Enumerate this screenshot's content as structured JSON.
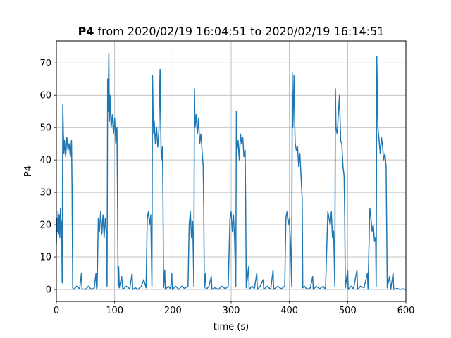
{
  "chart_data": {
    "type": "line",
    "title_bold": "P4",
    "title_rest": " from 2020/02/19 16:04:51 to 2020/02/19 16:14:51",
    "xlabel": "time (s)",
    "ylabel": "P4",
    "xlim": [
      0,
      600
    ],
    "ylim": [
      -3.7,
      76.8
    ],
    "xticks": [
      0,
      100,
      200,
      300,
      400,
      500,
      600
    ],
    "yticks": [
      0,
      10,
      20,
      30,
      40,
      50,
      60,
      70
    ],
    "grid": true,
    "line_color": "#1f77b4",
    "series": [
      {
        "points": [
          [
            0,
            14
          ],
          [
            1,
            22
          ],
          [
            2,
            18
          ],
          [
            3,
            24
          ],
          [
            4,
            17
          ],
          [
            5,
            23
          ],
          [
            6,
            16
          ],
          [
            7,
            25
          ],
          [
            8,
            20
          ],
          [
            9,
            21
          ],
          [
            10,
            2
          ],
          [
            11,
            57
          ],
          [
            12,
            48
          ],
          [
            13,
            42
          ],
          [
            14,
            46
          ],
          [
            16,
            41
          ],
          [
            18,
            47
          ],
          [
            20,
            43
          ],
          [
            22,
            45
          ],
          [
            24,
            41
          ],
          [
            26,
            46
          ],
          [
            27,
            30
          ],
          [
            28,
            0.5
          ],
          [
            30,
            0
          ],
          [
            35,
            1
          ],
          [
            40,
            0.2
          ],
          [
            43,
            5
          ],
          [
            44,
            0.2
          ],
          [
            50,
            0
          ],
          [
            55,
            1
          ],
          [
            60,
            0
          ],
          [
            65,
            0.5
          ],
          [
            68,
            5
          ],
          [
            69,
            0
          ],
          [
            70,
            1
          ],
          [
            72,
            22
          ],
          [
            74,
            18
          ],
          [
            76,
            24
          ],
          [
            78,
            17
          ],
          [
            80,
            23
          ],
          [
            82,
            16
          ],
          [
            84,
            22
          ],
          [
            86,
            17
          ],
          [
            87,
            1
          ],
          [
            88,
            65
          ],
          [
            89,
            55
          ],
          [
            90,
            73
          ],
          [
            91,
            52
          ],
          [
            92,
            60
          ],
          [
            94,
            50
          ],
          [
            96,
            54
          ],
          [
            98,
            48
          ],
          [
            100,
            53
          ],
          [
            102,
            45
          ],
          [
            104,
            50
          ],
          [
            105,
            28
          ],
          [
            106,
            1
          ],
          [
            107,
            7
          ],
          [
            108,
            0.5
          ],
          [
            112,
            4
          ],
          [
            114,
            0
          ],
          [
            120,
            1
          ],
          [
            126,
            0.2
          ],
          [
            130,
            5
          ],
          [
            131,
            0
          ],
          [
            136,
            0.5
          ],
          [
            140,
            0
          ],
          [
            146,
            1
          ],
          [
            150,
            3
          ],
          [
            154,
            0.5
          ],
          [
            156,
            22
          ],
          [
            158,
            24
          ],
          [
            160,
            20
          ],
          [
            162,
            23
          ],
          [
            163,
            12
          ],
          [
            164,
            1
          ],
          [
            165,
            66
          ],
          [
            166,
            55
          ],
          [
            167,
            48
          ],
          [
            168,
            52
          ],
          [
            170,
            45
          ],
          [
            172,
            50
          ],
          [
            174,
            44
          ],
          [
            176,
            49
          ],
          [
            178,
            68
          ],
          [
            179,
            52
          ],
          [
            180,
            40
          ],
          [
            182,
            44
          ],
          [
            183,
            29
          ],
          [
            184,
            0.5
          ],
          [
            186,
            6
          ],
          [
            187,
            0
          ],
          [
            192,
            1
          ],
          [
            196,
            0.2
          ],
          [
            198,
            5
          ],
          [
            199,
            0
          ],
          [
            205,
            1
          ],
          [
            210,
            0
          ],
          [
            215,
            1
          ],
          [
            220,
            0.3
          ],
          [
            226,
            1
          ],
          [
            228,
            20
          ],
          [
            230,
            24
          ],
          [
            232,
            16
          ],
          [
            234,
            21
          ],
          [
            236,
            1
          ],
          [
            237,
            62
          ],
          [
            238,
            50
          ],
          [
            240,
            54
          ],
          [
            242,
            48
          ],
          [
            244,
            53
          ],
          [
            246,
            45
          ],
          [
            248,
            48
          ],
          [
            250,
            43
          ],
          [
            252,
            38
          ],
          [
            253,
            25
          ],
          [
            254,
            0.5
          ],
          [
            256,
            5
          ],
          [
            257,
            0
          ],
          [
            262,
            1
          ],
          [
            266,
            4
          ],
          [
            267,
            0
          ],
          [
            272,
            0.5
          ],
          [
            278,
            0
          ],
          [
            284,
            1
          ],
          [
            290,
            0.2
          ],
          [
            295,
            1
          ],
          [
            298,
            22
          ],
          [
            300,
            24
          ],
          [
            302,
            18
          ],
          [
            304,
            23
          ],
          [
            306,
            15
          ],
          [
            308,
            1
          ],
          [
            309,
            55
          ],
          [
            310,
            43
          ],
          [
            312,
            46
          ],
          [
            314,
            40
          ],
          [
            316,
            48
          ],
          [
            318,
            45
          ],
          [
            320,
            47
          ],
          [
            322,
            41
          ],
          [
            324,
            43
          ],
          [
            325,
            26
          ],
          [
            326,
            0.5
          ],
          [
            330,
            7
          ],
          [
            331,
            0
          ],
          [
            336,
            1
          ],
          [
            340,
            0.3
          ],
          [
            344,
            5
          ],
          [
            345,
            0
          ],
          [
            350,
            1
          ],
          [
            355,
            3
          ],
          [
            356,
            0
          ],
          [
            362,
            1
          ],
          [
            368,
            0
          ],
          [
            372,
            6
          ],
          [
            373,
            0
          ],
          [
            380,
            1
          ],
          [
            386,
            0.2
          ],
          [
            392,
            1
          ],
          [
            394,
            22
          ],
          [
            396,
            24
          ],
          [
            398,
            20
          ],
          [
            400,
            22
          ],
          [
            402,
            14
          ],
          [
            404,
            1
          ],
          [
            405,
            67
          ],
          [
            406,
            50
          ],
          [
            408,
            66
          ],
          [
            409,
            52
          ],
          [
            410,
            45
          ],
          [
            412,
            43
          ],
          [
            414,
            44
          ],
          [
            416,
            38
          ],
          [
            418,
            42
          ],
          [
            420,
            35
          ],
          [
            422,
            28
          ],
          [
            423,
            0.5
          ],
          [
            426,
            1
          ],
          [
            430,
            0
          ],
          [
            436,
            0.5
          ],
          [
            440,
            4
          ],
          [
            441,
            0
          ],
          [
            446,
            1
          ],
          [
            452,
            0.2
          ],
          [
            458,
            1
          ],
          [
            462,
            0
          ],
          [
            466,
            24
          ],
          [
            468,
            22
          ],
          [
            470,
            20
          ],
          [
            472,
            24
          ],
          [
            474,
            16
          ],
          [
            476,
            18
          ],
          [
            478,
            1
          ],
          [
            479,
            62
          ],
          [
            480,
            50
          ],
          [
            482,
            48
          ],
          [
            484,
            54
          ],
          [
            486,
            60
          ],
          [
            488,
            46
          ],
          [
            490,
            45
          ],
          [
            492,
            38
          ],
          [
            494,
            35
          ],
          [
            495,
            22
          ],
          [
            496,
            0.5
          ],
          [
            500,
            6
          ],
          [
            501,
            0
          ],
          [
            506,
            1
          ],
          [
            510,
            0.2
          ],
          [
            516,
            6
          ],
          [
            517,
            0
          ],
          [
            522,
            1
          ],
          [
            528,
            0.5
          ],
          [
            534,
            5
          ],
          [
            535,
            0
          ],
          [
            538,
            25
          ],
          [
            540,
            22
          ],
          [
            542,
            18
          ],
          [
            544,
            20
          ],
          [
            546,
            15
          ],
          [
            548,
            16
          ],
          [
            549,
            1
          ],
          [
            550,
            72
          ],
          [
            551,
            60
          ],
          [
            552,
            50
          ],
          [
            554,
            46
          ],
          [
            556,
            42
          ],
          [
            558,
            47
          ],
          [
            560,
            44
          ],
          [
            562,
            40
          ],
          [
            564,
            42
          ],
          [
            566,
            38
          ],
          [
            567,
            20
          ],
          [
            568,
            0.5
          ],
          [
            572,
            4
          ],
          [
            574,
            0
          ],
          [
            578,
            5
          ],
          [
            579,
            0
          ],
          [
            585,
            0.3
          ],
          [
            590,
            0
          ],
          [
            595,
            0.2
          ],
          [
            600,
            0
          ]
        ]
      }
    ]
  }
}
